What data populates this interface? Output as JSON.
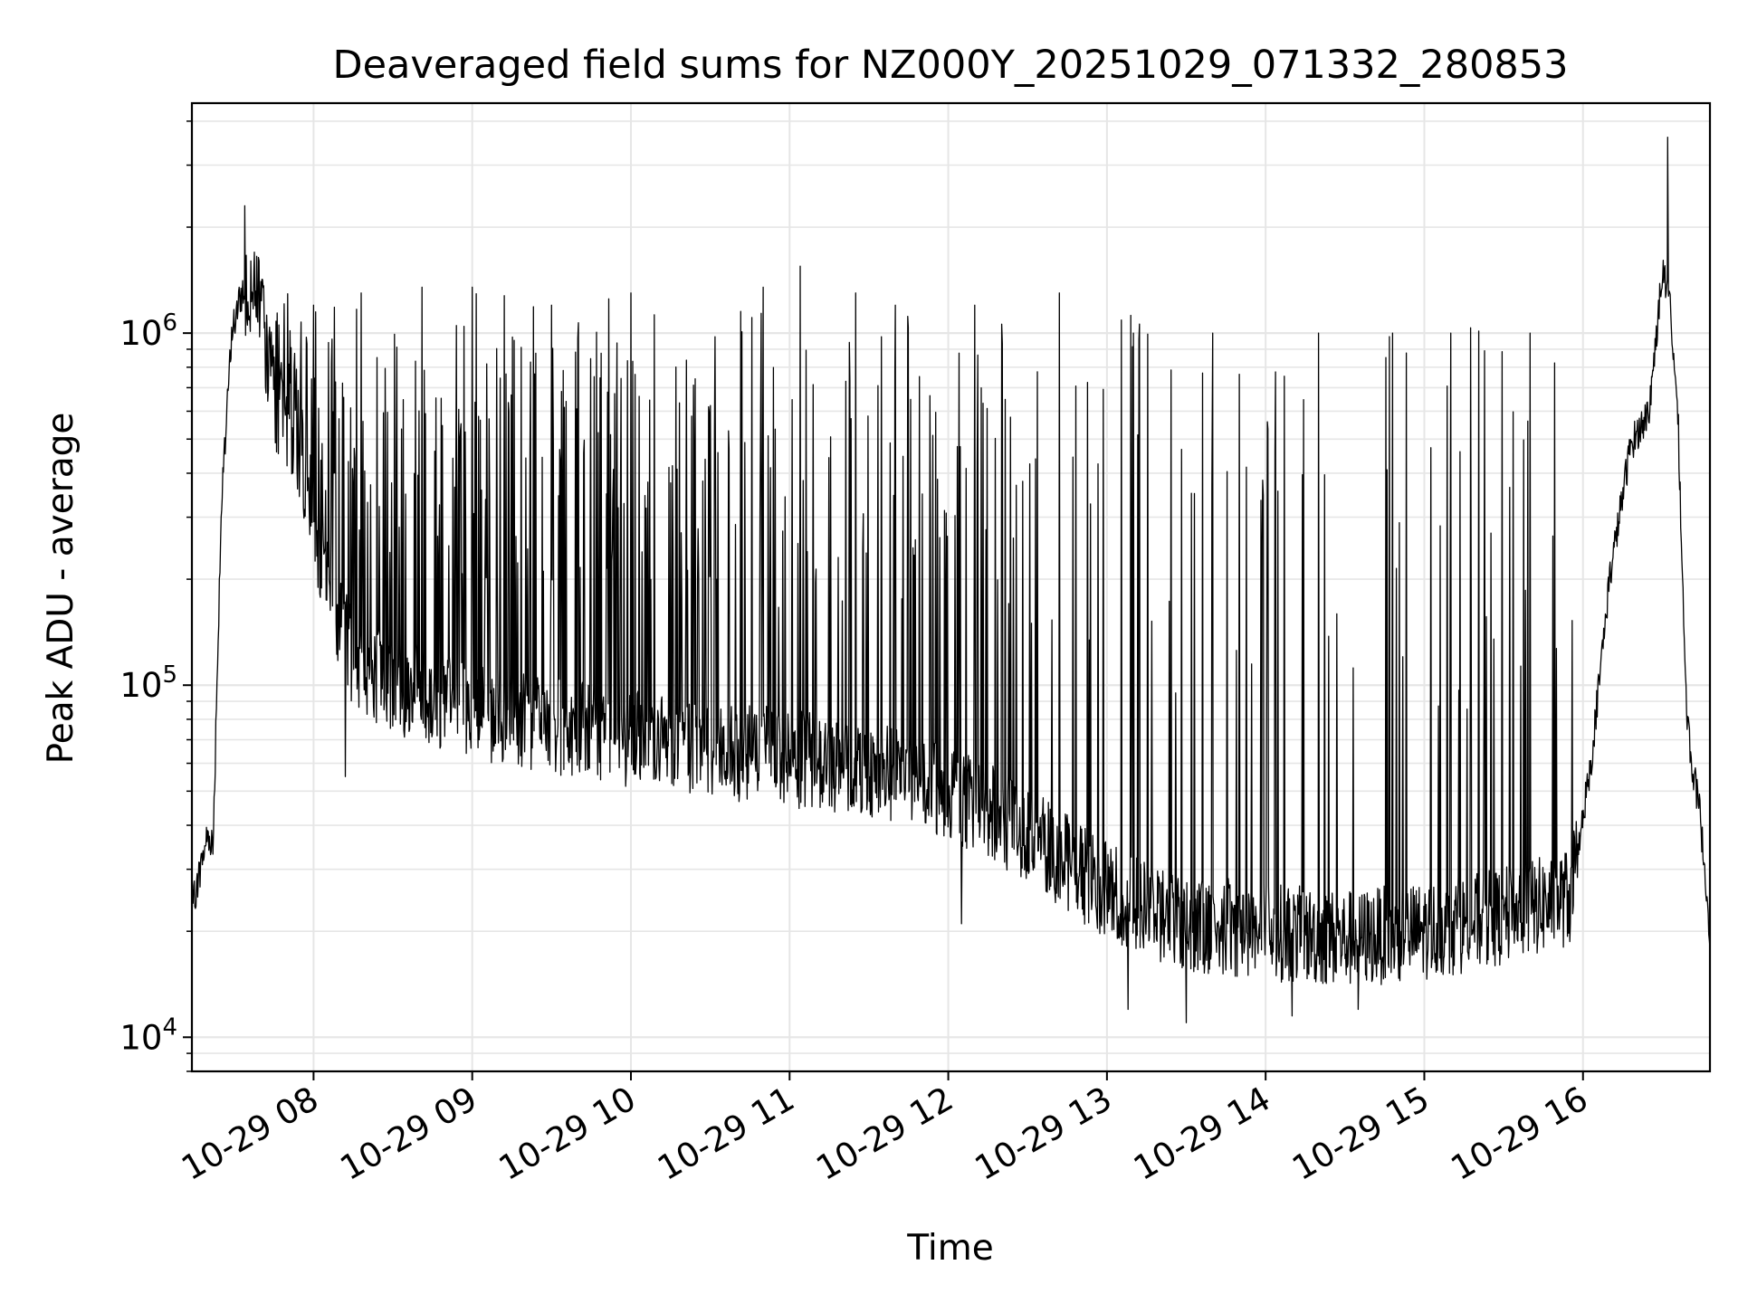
{
  "chart_data": {
    "type": "line",
    "title": "Deaveraged field sums for NZ000Y_20251029_071332_280853",
    "xlabel": "Time",
    "ylabel": "Peak ADU - average",
    "yscale": "log",
    "ylim": [
      8000,
      4500000
    ],
    "xlim": [
      "2025-10-29 07:14",
      "2025-10-29 16:48"
    ],
    "grid": true,
    "line_color": "#000000",
    "grid_color": "#e6e6e6",
    "x_ticks": [
      {
        "time": "2025-10-29 08:00",
        "label": "10-29 08"
      },
      {
        "time": "2025-10-29 09:00",
        "label": "10-29 09"
      },
      {
        "time": "2025-10-29 10:00",
        "label": "10-29 10"
      },
      {
        "time": "2025-10-29 11:00",
        "label": "10-29 11"
      },
      {
        "time": "2025-10-29 12:00",
        "label": "10-29 12"
      },
      {
        "time": "2025-10-29 13:00",
        "label": "10-29 13"
      },
      {
        "time": "2025-10-29 14:00",
        "label": "10-29 14"
      },
      {
        "time": "2025-10-29 15:00",
        "label": "10-29 15"
      },
      {
        "time": "2025-10-29 16:00",
        "label": "10-29 16"
      }
    ],
    "y_ticks": [
      {
        "value": 10000,
        "base": "10",
        "exp": "4"
      },
      {
        "value": 100000,
        "base": "10",
        "exp": "5"
      },
      {
        "value": 1000000,
        "base": "10",
        "exp": "6"
      }
    ],
    "series": [
      {
        "baseline_envelope": [
          {
            "time": "2025-10-29 07:14",
            "value": 23000
          },
          {
            "time": "2025-10-29 07:20",
            "value": 38000
          },
          {
            "time": "2025-10-29 07:22",
            "value": 35000
          },
          {
            "time": "2025-10-29 07:25",
            "value": 300000
          },
          {
            "time": "2025-10-29 07:29",
            "value": 1000000
          },
          {
            "time": "2025-10-29 07:33",
            "value": 1300000
          },
          {
            "time": "2025-10-29 07:38",
            "value": 1500000
          },
          {
            "time": "2025-10-29 07:45",
            "value": 650000
          },
          {
            "time": "2025-10-29 07:55",
            "value": 450000
          },
          {
            "time": "2025-10-29 08:05",
            "value": 200000
          },
          {
            "time": "2025-10-29 08:15",
            "value": 120000
          },
          {
            "time": "2025-10-29 08:30",
            "value": 100000
          },
          {
            "time": "2025-10-29 09:00",
            "value": 85000
          },
          {
            "time": "2025-10-29 10:00",
            "value": 70000
          },
          {
            "time": "2025-10-29 11:00",
            "value": 62000
          },
          {
            "time": "2025-10-29 11:30",
            "value": 58000
          },
          {
            "time": "2025-10-29 12:00",
            "value": 50000
          },
          {
            "time": "2025-10-29 12:30",
            "value": 38000
          },
          {
            "time": "2025-10-29 13:00",
            "value": 26000
          },
          {
            "time": "2025-10-29 13:30",
            "value": 21000
          },
          {
            "time": "2025-10-29 14:00",
            "value": 20000
          },
          {
            "time": "2025-10-29 14:30",
            "value": 19000
          },
          {
            "time": "2025-10-29 15:00",
            "value": 20000
          },
          {
            "time": "2025-10-29 15:30",
            "value": 22000
          },
          {
            "time": "2025-10-29 15:55",
            "value": 25000
          },
          {
            "time": "2025-10-29 16:03",
            "value": 60000
          },
          {
            "time": "2025-10-29 16:10",
            "value": 200000
          },
          {
            "time": "2025-10-29 16:18",
            "value": 480000
          },
          {
            "time": "2025-10-29 16:25",
            "value": 600000
          },
          {
            "time": "2025-10-29 16:30",
            "value": 1500000
          },
          {
            "time": "2025-10-29 16:33",
            "value": 1200000
          },
          {
            "time": "2025-10-29 16:36",
            "value": 550000
          },
          {
            "time": "2025-10-29 16:39",
            "value": 90000
          },
          {
            "time": "2025-10-29 16:41",
            "value": 60000
          },
          {
            "time": "2025-10-29 16:44",
            "value": 45000
          },
          {
            "time": "2025-10-29 16:48",
            "value": 20000
          }
        ],
        "spikes": [
          {
            "time": "2025-10-29 07:34",
            "value": 2300000
          },
          {
            "time": "2025-10-29 08:00",
            "value": 1200000
          },
          {
            "time": "2025-10-29 08:18",
            "value": 1300000
          },
          {
            "time": "2025-10-29 08:41",
            "value": 1350000
          },
          {
            "time": "2025-10-29 09:00",
            "value": 1350000
          },
          {
            "time": "2025-10-29 09:30",
            "value": 1200000
          },
          {
            "time": "2025-10-29 10:00",
            "value": 1300000
          },
          {
            "time": "2025-10-29 10:50",
            "value": 1350000
          },
          {
            "time": "2025-10-29 11:04",
            "value": 1550000
          },
          {
            "time": "2025-10-29 11:25",
            "value": 1300000
          },
          {
            "time": "2025-10-29 11:40",
            "value": 1200000
          },
          {
            "time": "2025-10-29 12:10",
            "value": 1200000
          },
          {
            "time": "2025-10-29 12:42",
            "value": 1300000
          },
          {
            "time": "2025-10-29 13:10",
            "value": 1000000
          },
          {
            "time": "2025-10-29 13:40",
            "value": 1000000
          },
          {
            "time": "2025-10-29 14:20",
            "value": 1000000
          },
          {
            "time": "2025-10-29 14:48",
            "value": 1000000
          },
          {
            "time": "2025-10-29 15:10",
            "value": 1000000
          },
          {
            "time": "2025-10-29 15:40",
            "value": 1000000
          },
          {
            "time": "2025-10-29 16:32",
            "value": 3600000
          }
        ],
        "dips": [
          {
            "time": "2025-10-29 08:12",
            "value": 55000
          },
          {
            "time": "2025-10-29 12:05",
            "value": 21000
          },
          {
            "time": "2025-10-29 13:08",
            "value": 12000
          },
          {
            "time": "2025-10-29 13:30",
            "value": 11000
          },
          {
            "time": "2025-10-29 14:10",
            "value": 11500
          },
          {
            "time": "2025-10-29 14:35",
            "value": 12000
          }
        ]
      }
    ]
  }
}
